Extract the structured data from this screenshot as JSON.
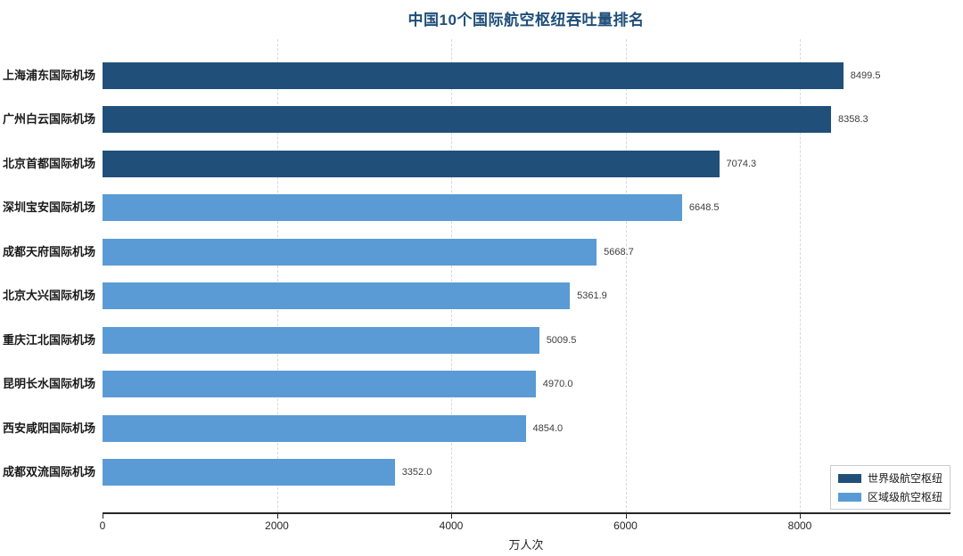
{
  "chart_data": {
    "type": "bar",
    "orientation": "horizontal",
    "title": "中国10个国际航空枢纽吞吐量排名",
    "xlabel": "万人次",
    "categories": [
      "上海浦东国际机场",
      "广州白云国际机场",
      "北京首都国际机场",
      "深圳宝安国际机场",
      "成都天府国际机场",
      "北京大兴国际机场",
      "重庆江北国际机场",
      "昆明长水国际机场",
      "西安咸阳国际机场",
      "成都双流国际机场"
    ],
    "values": [
      8499.5,
      8358.3,
      7074.3,
      6648.5,
      5668.7,
      5361.9,
      5009.5,
      4970.0,
      4854.0,
      3352.0
    ],
    "value_labels": [
      "8499.5",
      "8358.3",
      "7074.3",
      "6648.5",
      "5668.7",
      "5361.9",
      "5009.5",
      "4970.0",
      "4854.0",
      "3352.0"
    ],
    "bar_groups": [
      "world",
      "world",
      "world",
      "regional",
      "regional",
      "regional",
      "regional",
      "regional",
      "regional",
      "regional"
    ],
    "colors": {
      "world": "#20507a",
      "regional": "#5b9bd5",
      "title": "#1f4e79"
    },
    "x_ticks": [
      0,
      2000,
      4000,
      6000,
      8000
    ],
    "x_tick_labels": [
      "0",
      "2000",
      "4000",
      "6000",
      "8000"
    ],
    "x_range": [
      0,
      9720
    ],
    "grid": "vertical dashed at x ticks",
    "legend_position": "lower right",
    "legend": [
      {
        "label": "世界级航空枢纽",
        "group": "world"
      },
      {
        "label": "区域级航空枢纽",
        "group": "regional"
      }
    ]
  }
}
